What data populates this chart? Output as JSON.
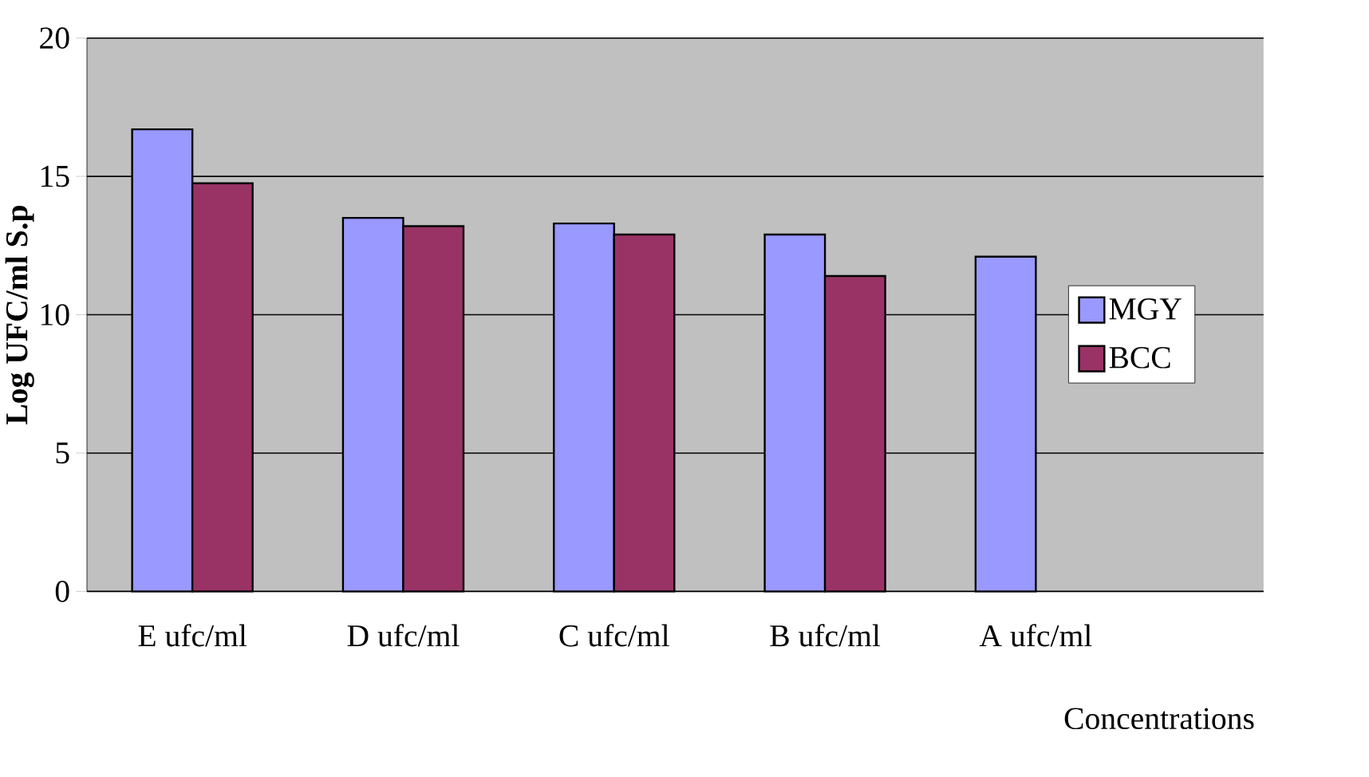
{
  "chart_data": {
    "type": "bar",
    "ylabel": "Log UFC/ml S.p",
    "xlabel": "Concentrations",
    "categories": [
      "E ufc/ml",
      "D ufc/ml",
      "C ufc/ml",
      "B ufc/ml",
      "A ufc/ml"
    ],
    "series": [
      {
        "name": "MGY",
        "color": "#9999ff",
        "values": [
          16.7,
          13.5,
          13.3,
          12.9,
          12.1
        ]
      },
      {
        "name": "BCC",
        "color": "#993366",
        "values": [
          14.75,
          13.2,
          12.9,
          11.4,
          null
        ]
      }
    ],
    "ylim": [
      0,
      20
    ],
    "yticks": [
      0,
      5,
      10,
      15,
      20
    ],
    "grid": "y",
    "legend": "right"
  }
}
